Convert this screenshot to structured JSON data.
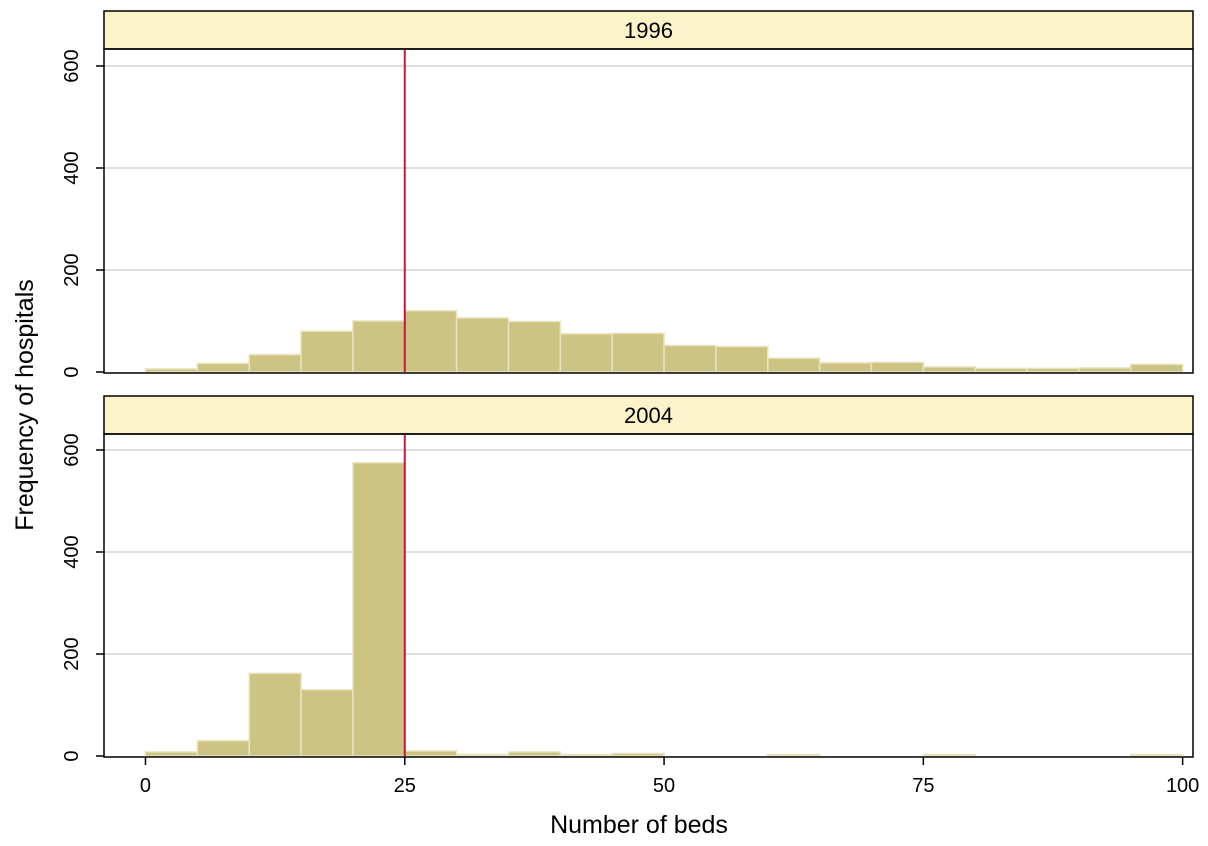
{
  "chart_data": {
    "type": "bar",
    "subtype": "histogram",
    "xlabel": "Number of beds",
    "ylabel": "Frequency of hospitals",
    "xlim": [
      -4,
      101
    ],
    "ylim": [
      0,
      630
    ],
    "xticks": [
      0,
      25,
      50,
      75,
      100
    ],
    "yticks": [
      0,
      200,
      400,
      600
    ],
    "grid": "horizontal",
    "bin_width": 5,
    "bin_starts": [
      0,
      5,
      10,
      15,
      20,
      25,
      30,
      35,
      40,
      45,
      50,
      55,
      60,
      65,
      70,
      75,
      80,
      85,
      90,
      95
    ],
    "reference_line_x": 25,
    "colors": {
      "bar_fill": "#cdc383",
      "bar_edge": "#e9e3bf",
      "strip_fill": "#fdf3c9",
      "reference_line": "#c4183c",
      "grid": "#dddddd",
      "frame": "#000000"
    },
    "panels": [
      {
        "label": "1996",
        "values": [
          6,
          17,
          34,
          80,
          100,
          120,
          106,
          99,
          75,
          76,
          52,
          50,
          27,
          18,
          19,
          10,
          7,
          7,
          8,
          15
        ]
      },
      {
        "label": "2004",
        "values": [
          8,
          30,
          162,
          130,
          575,
          10,
          3,
          8,
          2,
          5,
          0,
          0,
          1,
          0,
          0,
          1,
          0,
          0,
          0,
          2
        ]
      }
    ]
  }
}
